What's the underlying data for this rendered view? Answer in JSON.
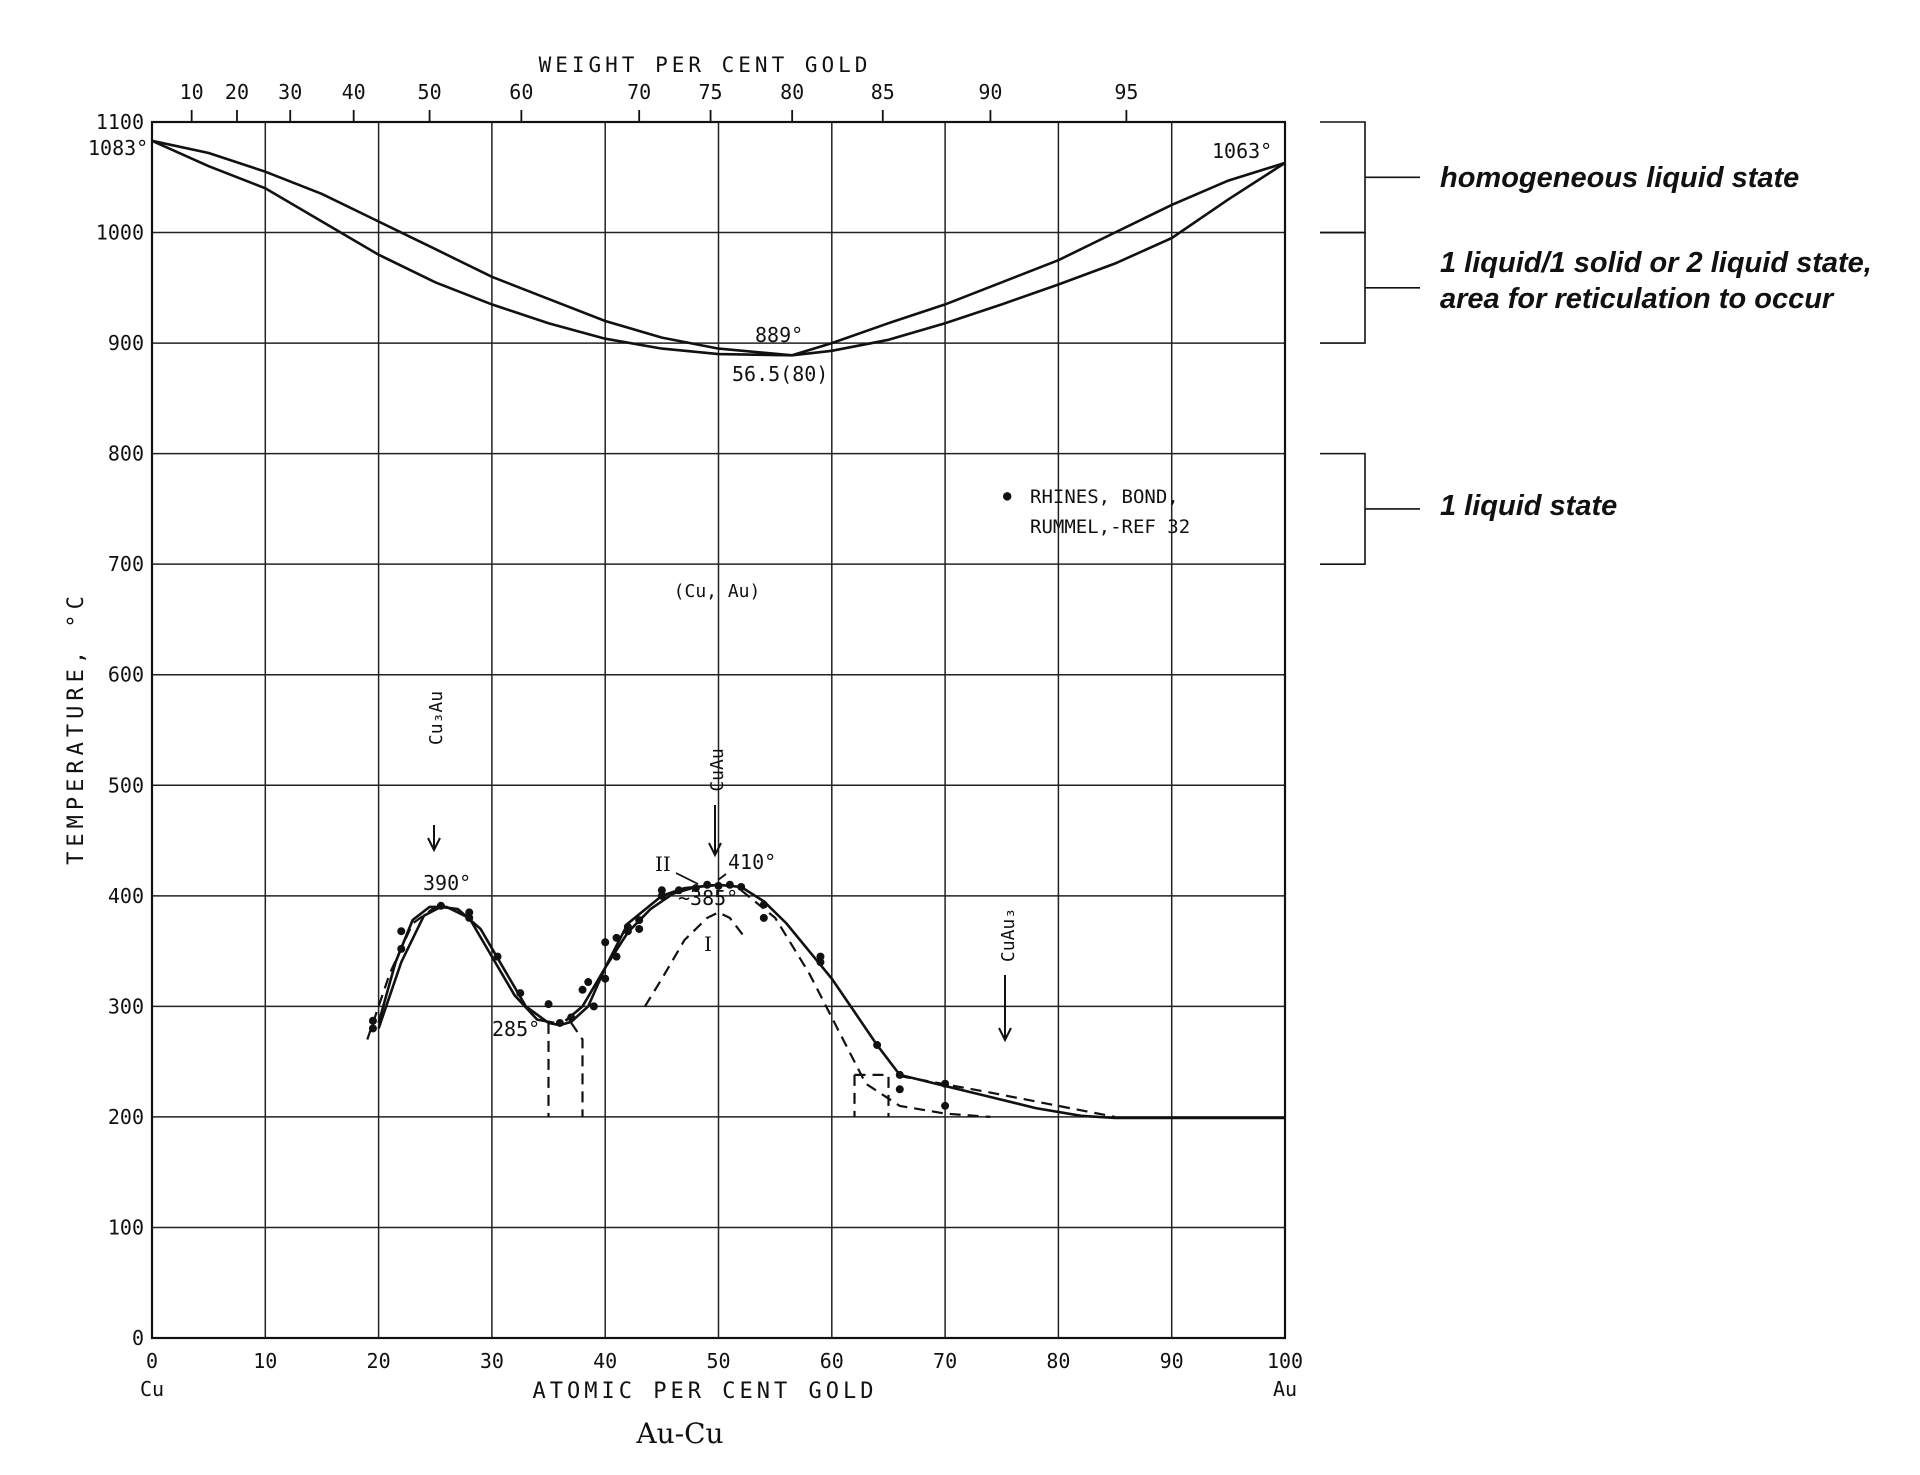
{
  "chart_data": {
    "type": "line",
    "title": "Au-Cu",
    "xlabel": "ATOMIC PER CENT GOLD",
    "x2label": "WEIGHT PER CENT GOLD",
    "ylabel": "TEMPERATURE, °C",
    "xlim": [
      0,
      100
    ],
    "ylim": [
      0,
      1100
    ],
    "x_ticks": [
      "0",
      "10",
      "20",
      "30",
      "40",
      "50",
      "60",
      "70",
      "80",
      "90",
      "100"
    ],
    "x_end_labels": [
      "Cu",
      "Au"
    ],
    "y_ticks": [
      "0",
      "100",
      "200",
      "300",
      "400",
      "500",
      "600",
      "700",
      "800",
      "900",
      "1000",
      "1100"
    ],
    "weight_ticks": [
      {
        "label": "10",
        "x": 3.5
      },
      {
        "label": "20",
        "x": 7.5
      },
      {
        "label": "30",
        "x": 12.2
      },
      {
        "label": "40",
        "x": 17.8
      },
      {
        "label": "50",
        "x": 24.5
      },
      {
        "label": "60",
        "x": 32.6
      },
      {
        "label": "70",
        "x": 43
      },
      {
        "label": "75",
        "x": 49.3
      },
      {
        "label": "80",
        "x": 56.5
      },
      {
        "label": "85",
        "x": 64.5
      },
      {
        "label": "90",
        "x": 74
      },
      {
        "label": "95",
        "x": 86
      }
    ],
    "grid": true,
    "series": [
      {
        "style": "solid",
        "points": [
          [
            0,
            1083
          ],
          [
            5,
            1060
          ],
          [
            10,
            1040
          ],
          [
            15,
            1010
          ],
          [
            20,
            980
          ],
          [
            25,
            955
          ],
          [
            30,
            935
          ],
          [
            35,
            918
          ],
          [
            40,
            904
          ],
          [
            45,
            895
          ],
          [
            50,
            890
          ],
          [
            56.5,
            889
          ],
          [
            60,
            893
          ],
          [
            65,
            903
          ],
          [
            70,
            918
          ],
          [
            75,
            935
          ],
          [
            80,
            953
          ],
          [
            85,
            972
          ],
          [
            90,
            995
          ],
          [
            95,
            1030
          ],
          [
            100,
            1063
          ]
        ]
      },
      {
        "style": "solid",
        "points": [
          [
            0,
            1083
          ],
          [
            5,
            1072
          ],
          [
            10,
            1055
          ],
          [
            15,
            1035
          ],
          [
            20,
            1010
          ],
          [
            25,
            985
          ],
          [
            30,
            960
          ],
          [
            35,
            940
          ],
          [
            40,
            920
          ],
          [
            45,
            905
          ],
          [
            50,
            895
          ],
          [
            56.5,
            889
          ],
          [
            60,
            900
          ],
          [
            65,
            918
          ],
          [
            70,
            935
          ],
          [
            75,
            955
          ],
          [
            80,
            975
          ],
          [
            85,
            1000
          ],
          [
            90,
            1025
          ],
          [
            95,
            1047
          ],
          [
            100,
            1063
          ]
        ]
      },
      {
        "style": "solid",
        "points": [
          [
            20,
            280
          ],
          [
            22,
            340
          ],
          [
            24,
            382
          ],
          [
            25.5,
            390
          ],
          [
            27,
            388
          ],
          [
            29,
            370
          ],
          [
            31,
            335
          ],
          [
            33,
            300
          ],
          [
            35,
            285
          ],
          [
            36,
            283
          ],
          [
            37,
            286
          ],
          [
            38.5,
            300
          ],
          [
            40,
            335
          ],
          [
            42,
            375
          ],
          [
            45,
            400
          ],
          [
            47,
            407
          ],
          [
            50,
            410
          ],
          [
            52,
            408
          ],
          [
            54,
            395
          ],
          [
            56,
            375
          ],
          [
            58,
            350
          ],
          [
            60,
            325
          ],
          [
            62,
            295
          ],
          [
            64,
            265
          ],
          [
            66,
            238
          ],
          [
            70,
            228
          ],
          [
            74,
            218
          ],
          [
            78,
            208
          ],
          [
            82,
            201
          ],
          [
            85,
            199
          ],
          [
            100,
            199
          ]
        ]
      },
      {
        "style": "solid",
        "points": [
          [
            20,
            285
          ],
          [
            21.5,
            340
          ],
          [
            23,
            378
          ],
          [
            24.5,
            390
          ],
          [
            26,
            390
          ],
          [
            28,
            380
          ],
          [
            30,
            345
          ],
          [
            32,
            310
          ],
          [
            34,
            288
          ],
          [
            35.5,
            285
          ]
        ]
      },
      {
        "style": "solid",
        "points": [
          [
            36.5,
            287
          ],
          [
            38,
            300
          ],
          [
            40,
            335
          ],
          [
            42,
            367
          ],
          [
            44,
            388
          ],
          [
            46,
            402
          ],
          [
            48,
            408
          ],
          [
            50,
            410
          ]
        ]
      },
      {
        "style": "dashed",
        "points": [
          [
            19,
            270
          ],
          [
            21,
            330
          ],
          [
            23,
            375
          ],
          [
            25,
            390
          ]
        ]
      },
      {
        "style": "dashed",
        "points": [
          [
            35,
            285
          ],
          [
            35,
            200
          ]
        ]
      },
      {
        "style": "dashed",
        "points": [
          [
            37,
            285
          ],
          [
            38,
            270
          ],
          [
            38,
            200
          ]
        ]
      },
      {
        "style": "dashed",
        "points": [
          [
            43.5,
            300
          ],
          [
            45,
            325
          ],
          [
            47,
            360
          ],
          [
            49,
            380
          ],
          [
            50,
            385
          ],
          [
            51,
            380
          ],
          [
            52.5,
            360
          ]
        ]
      },
      {
        "style": "dashed",
        "points": [
          [
            52,
            405
          ],
          [
            55,
            380
          ],
          [
            58,
            330
          ],
          [
            61,
            270
          ],
          [
            63,
            230
          ],
          [
            66,
            210
          ],
          [
            70,
            203
          ],
          [
            74,
            200
          ]
        ]
      },
      {
        "style": "dashed",
        "points": [
          [
            62,
            238
          ],
          [
            65,
            238
          ],
          [
            65,
            200
          ]
        ]
      },
      {
        "style": "dashed",
        "points": [
          [
            62,
            238
          ],
          [
            62,
            200
          ]
        ]
      },
      {
        "style": "dashed",
        "points": [
          [
            66,
            237
          ],
          [
            74,
            222
          ],
          [
            80,
            210
          ],
          [
            85,
            200
          ]
        ]
      }
    ],
    "points": [
      [
        19.5,
        287
      ],
      [
        19.5,
        280
      ],
      [
        22,
        368
      ],
      [
        22,
        352
      ],
      [
        25.5,
        391
      ],
      [
        28,
        385
      ],
      [
        28,
        380
      ],
      [
        30.5,
        345
      ],
      [
        32.5,
        312
      ],
      [
        35,
        302
      ],
      [
        36,
        285
      ],
      [
        37,
        290
      ],
      [
        38,
        315
      ],
      [
        38.5,
        322
      ],
      [
        39,
        300
      ],
      [
        40,
        325
      ],
      [
        40,
        358
      ],
      [
        41,
        362
      ],
      [
        41,
        345
      ],
      [
        42,
        368
      ],
      [
        42,
        372
      ],
      [
        43,
        378
      ],
      [
        43,
        370
      ],
      [
        45,
        400
      ],
      [
        45,
        405
      ],
      [
        46.5,
        405
      ],
      [
        48,
        407
      ],
      [
        49,
        410
      ],
      [
        50,
        409
      ],
      [
        51,
        410
      ],
      [
        52,
        408
      ],
      [
        54,
        392
      ],
      [
        54,
        380
      ],
      [
        59,
        345
      ],
      [
        59,
        340
      ],
      [
        64,
        265
      ],
      [
        66,
        238
      ],
      [
        66,
        225
      ],
      [
        70,
        230
      ],
      [
        70,
        210
      ]
    ],
    "annotations": [
      {
        "text": "1083°"
      },
      {
        "text": "1063°"
      },
      {
        "text": "889°"
      },
      {
        "text": "56.5(80)"
      },
      {
        "text": "(Cu, Au)"
      },
      {
        "text": "Cu₃Au"
      },
      {
        "text": "CuAu"
      },
      {
        "text": "CuAu₃"
      },
      {
        "text": "390°"
      },
      {
        "text": "410°"
      },
      {
        "text": "~385°"
      },
      {
        "text": "285°"
      },
      {
        "text": "II"
      },
      {
        "text": "I"
      }
    ],
    "legend": {
      "marker": "●",
      "lines": [
        "RHINES, BOND,",
        "RUMMEL,-REF 32"
      ]
    }
  },
  "regions": [
    {
      "label": "homogeneous liquid state",
      "range": [
        1000,
        1100
      ]
    },
    {
      "label_lines": [
        "1 liquid/1 solid or 2 liquid state,",
        "area for reticulation to occur"
      ],
      "range": [
        900,
        1000
      ]
    },
    {
      "label": "1 liquid state",
      "range": [
        700,
        800
      ]
    }
  ],
  "colors": {
    "ink": "#111111",
    "background": "#ffffff"
  }
}
